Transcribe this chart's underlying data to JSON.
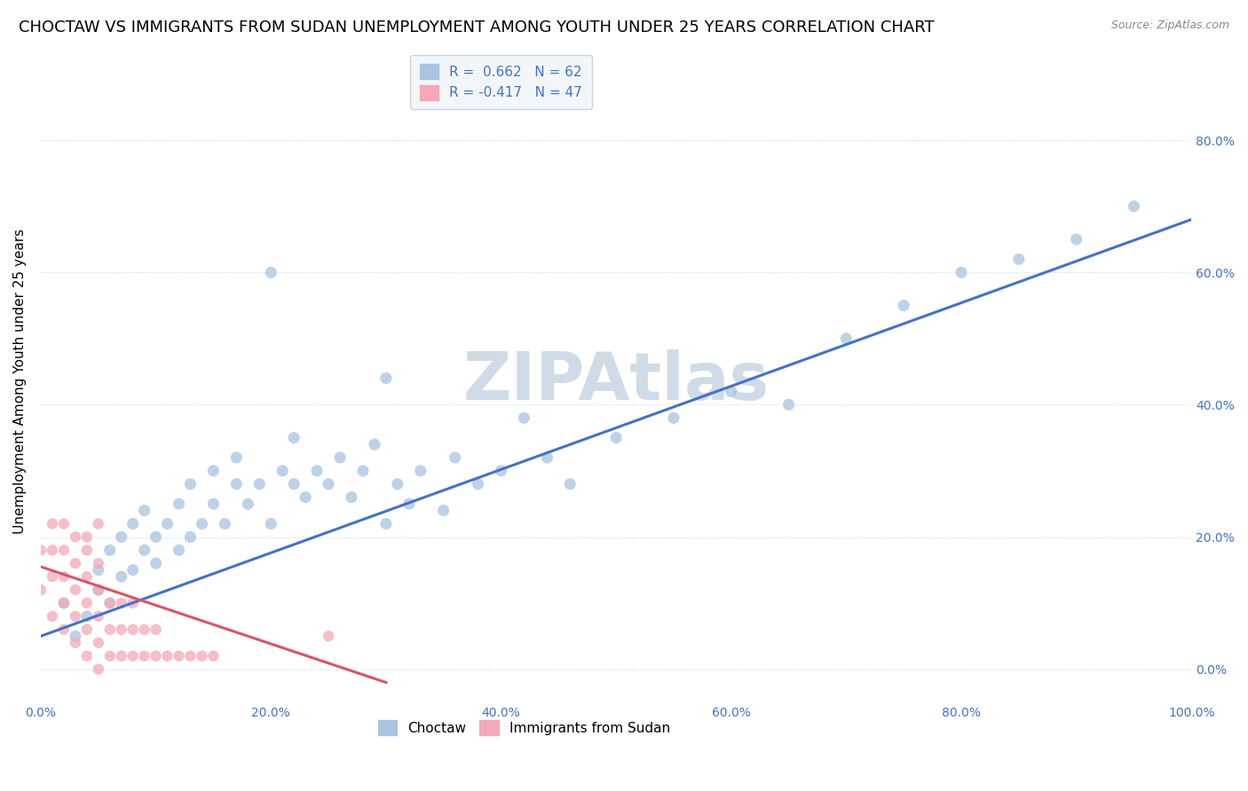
{
  "title": "CHOCTAW VS IMMIGRANTS FROM SUDAN UNEMPLOYMENT AMONG YOUTH UNDER 25 YEARS CORRELATION CHART",
  "source": "Source: ZipAtlas.com",
  "ylabel": "Unemployment Among Youth under 25 years",
  "xlim": [
    0.0,
    1.0
  ],
  "ylim": [
    -0.05,
    0.92
  ],
  "xticks": [
    0.0,
    0.2,
    0.4,
    0.6,
    0.8,
    1.0
  ],
  "xticklabels": [
    "0.0%",
    "20.0%",
    "40.0%",
    "60.0%",
    "80.0%",
    "100.0%"
  ],
  "ytick_positions": [
    0.0,
    0.2,
    0.4,
    0.6,
    0.8
  ],
  "right_yticklabels": [
    "0.0%",
    "20.0%",
    "40.0%",
    "60.0%",
    "80.0%"
  ],
  "choctaw_R": 0.662,
  "choctaw_N": 62,
  "sudan_R": -0.417,
  "sudan_N": 47,
  "choctaw_color": "#a8c4e0",
  "sudan_color": "#f4a8b8",
  "choctaw_line_color": "#4472c4",
  "sudan_line_color": "#d9546a",
  "watermark": "ZIPAtlas",
  "watermark_color": "#cfdce8",
  "background_color": "#ffffff",
  "grid_color": "#ccd8e8",
  "choctaw_x": [
    0.02,
    0.03,
    0.04,
    0.05,
    0.05,
    0.06,
    0.06,
    0.07,
    0.07,
    0.08,
    0.08,
    0.09,
    0.09,
    0.1,
    0.1,
    0.11,
    0.12,
    0.12,
    0.13,
    0.13,
    0.14,
    0.15,
    0.15,
    0.16,
    0.17,
    0.17,
    0.18,
    0.19,
    0.2,
    0.21,
    0.22,
    0.22,
    0.23,
    0.24,
    0.25,
    0.26,
    0.27,
    0.28,
    0.29,
    0.3,
    0.31,
    0.32,
    0.33,
    0.35,
    0.36,
    0.38,
    0.4,
    0.42,
    0.44,
    0.46,
    0.5,
    0.55,
    0.6,
    0.65,
    0.7,
    0.75,
    0.8,
    0.85,
    0.9,
    0.95,
    0.2,
    0.3
  ],
  "choctaw_y": [
    0.1,
    0.05,
    0.08,
    0.12,
    0.15,
    0.1,
    0.18,
    0.14,
    0.2,
    0.15,
    0.22,
    0.18,
    0.24,
    0.2,
    0.16,
    0.22,
    0.18,
    0.25,
    0.2,
    0.28,
    0.22,
    0.25,
    0.3,
    0.22,
    0.28,
    0.32,
    0.25,
    0.28,
    0.22,
    0.3,
    0.28,
    0.35,
    0.26,
    0.3,
    0.28,
    0.32,
    0.26,
    0.3,
    0.34,
    0.22,
    0.28,
    0.25,
    0.3,
    0.24,
    0.32,
    0.28,
    0.3,
    0.38,
    0.32,
    0.28,
    0.35,
    0.38,
    0.42,
    0.4,
    0.5,
    0.55,
    0.6,
    0.62,
    0.65,
    0.7,
    0.6,
    0.44
  ],
  "sudan_x": [
    0.0,
    0.0,
    0.01,
    0.01,
    0.01,
    0.01,
    0.02,
    0.02,
    0.02,
    0.02,
    0.02,
    0.03,
    0.03,
    0.03,
    0.03,
    0.03,
    0.04,
    0.04,
    0.04,
    0.04,
    0.04,
    0.05,
    0.05,
    0.05,
    0.05,
    0.05,
    0.06,
    0.06,
    0.06,
    0.07,
    0.07,
    0.07,
    0.08,
    0.08,
    0.08,
    0.09,
    0.09,
    0.1,
    0.1,
    0.11,
    0.12,
    0.13,
    0.14,
    0.15,
    0.04,
    0.05,
    0.25
  ],
  "sudan_y": [
    0.12,
    0.18,
    0.08,
    0.14,
    0.18,
    0.22,
    0.06,
    0.1,
    0.14,
    0.18,
    0.22,
    0.04,
    0.08,
    0.12,
    0.16,
    0.2,
    0.02,
    0.06,
    0.1,
    0.14,
    0.18,
    0.0,
    0.04,
    0.08,
    0.12,
    0.16,
    0.02,
    0.06,
    0.1,
    0.02,
    0.06,
    0.1,
    0.02,
    0.06,
    0.1,
    0.02,
    0.06,
    0.02,
    0.06,
    0.02,
    0.02,
    0.02,
    0.02,
    0.02,
    0.2,
    0.22,
    0.05
  ],
  "legend_box_color": "#f0f4f8",
  "legend_text_color": "#4472c4",
  "title_fontsize": 13,
  "axis_label_fontsize": 11,
  "tick_fontsize": 10,
  "legend_fontsize": 11
}
